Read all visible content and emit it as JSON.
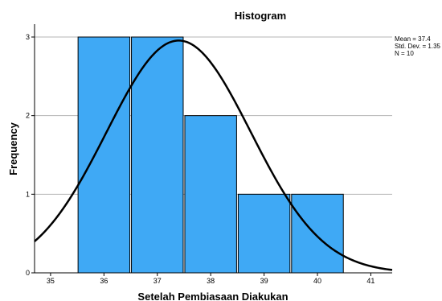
{
  "chart_data": {
    "type": "bar",
    "title": "Histogram",
    "xlabel": "Setelah Pembiasaan Diakukan",
    "ylabel": "Frequency",
    "bins": [
      {
        "x": 36,
        "count": 3
      },
      {
        "x": 37,
        "count": 3
      },
      {
        "x": 38,
        "count": 2
      },
      {
        "x": 39,
        "count": 1
      },
      {
        "x": 40,
        "count": 1
      }
    ],
    "xlim": [
      34.7,
      41.4
    ],
    "ylim": [
      0,
      3.0
    ],
    "x_ticks": [
      "35",
      "36",
      "37",
      "38",
      "39",
      "40",
      "41"
    ],
    "y_ticks": [
      "0",
      "1",
      "2",
      "3"
    ],
    "normal_curve": {
      "mean": 37.4,
      "sd": 1.35,
      "n": 10,
      "bin_width": 1
    },
    "stats": [
      "Mean = 37.4",
      "Std. Dev. = 1.35",
      "N = 10"
    ],
    "grid": true,
    "legend_position": "top-right",
    "colors": {
      "bar_fill": "#3fa9f5",
      "bar_stroke": "#000000",
      "curve": "#000000",
      "grid": "#b4b4b4",
      "axis": "#000000"
    }
  }
}
